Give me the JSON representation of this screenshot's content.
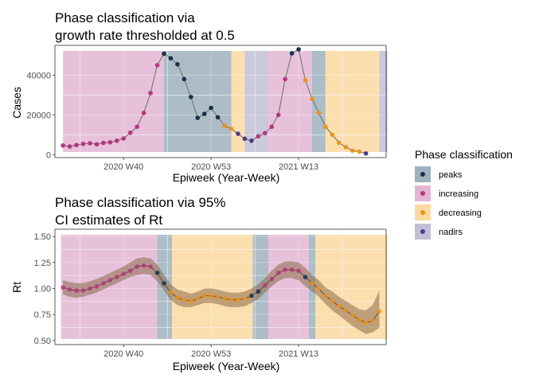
{
  "chart_data": [
    {
      "type": "line",
      "title": [
        "Phase classification via",
        "growth rate thresholded at 0.5"
      ],
      "xlabel": "Epiweek (Year-Week)",
      "ylabel": "Cases",
      "x_ticks": [
        {
          "index": 9,
          "label": "2020 W40"
        },
        {
          "index": 22,
          "label": "2020 W53"
        },
        {
          "index": 35,
          "label": "2021 W13"
        }
      ],
      "y_ticks": [
        0,
        20000,
        40000
      ],
      "y_tick_labels": [
        "0",
        "20000",
        "40000"
      ],
      "ylim": [
        -1500,
        55000
      ],
      "xlim": [
        -1.2,
        48
      ],
      "phase_bands": [
        {
          "phase": "increasing",
          "start": 0,
          "end": 15
        },
        {
          "phase": "peaks",
          "start": 15,
          "end": 25
        },
        {
          "phase": "decreasing",
          "start": 25,
          "end": 27
        },
        {
          "phase": "nadirs",
          "start": 27,
          "end": 30.5
        },
        {
          "phase": "increasing",
          "start": 30.5,
          "end": 37
        },
        {
          "phase": "peaks",
          "start": 37,
          "end": 39
        },
        {
          "phase": "decreasing",
          "start": 39,
          "end": 47
        },
        {
          "phase": "nadirs",
          "start": 47,
          "end": 48.2
        }
      ],
      "points": {
        "x": [
          0,
          1,
          2,
          3,
          4,
          5,
          6,
          7,
          8,
          9,
          10,
          11,
          12,
          13,
          14,
          15,
          16,
          17,
          18,
          19,
          20,
          21,
          22,
          23,
          24,
          25,
          26,
          27,
          28,
          29,
          30,
          31,
          32,
          33,
          34,
          35,
          36,
          37,
          38,
          39,
          40,
          41,
          42,
          43,
          44,
          45,
          46,
          47
        ],
        "y": [
          4600,
          4100,
          4800,
          5400,
          5700,
          5200,
          5900,
          6200,
          7000,
          8100,
          11000,
          14000,
          21000,
          31000,
          45000,
          50800,
          48500,
          45500,
          38000,
          29000,
          18500,
          20500,
          23500,
          18800,
          14500,
          13000,
          10500,
          8000,
          7000,
          9200,
          10800,
          14000,
          20000,
          38000,
          51000,
          53000,
          37500,
          28000,
          21000,
          14000,
          10000,
          6000,
          3800,
          2000,
          1500,
          600,
          null,
          null
        ],
        "phase": [
          "increasing",
          "increasing",
          "increasing",
          "increasing",
          "increasing",
          "increasing",
          "increasing",
          "increasing",
          "increasing",
          "increasing",
          "increasing",
          "increasing",
          "increasing",
          "increasing",
          "increasing",
          "peaks",
          "peaks",
          "peaks",
          "peaks",
          "peaks",
          "peaks",
          "peaks",
          "peaks",
          "peaks",
          "decreasing",
          "decreasing",
          "nadirs",
          "nadirs",
          "nadirs",
          "increasing",
          "increasing",
          "increasing",
          "increasing",
          "increasing",
          "peaks",
          "peaks",
          "decreasing",
          "decreasing",
          "decreasing",
          "decreasing",
          "decreasing",
          "decreasing",
          "decreasing",
          "decreasing",
          "decreasing",
          "nadirs",
          null,
          null
        ]
      },
      "grid": true
    },
    {
      "type": "line",
      "title": [
        "Phase classification via 95%",
        "CI estimates of Rt"
      ],
      "xlabel": "Epiweek (Year-Week)",
      "ylabel": "Rt",
      "x_ticks": [
        {
          "index": 9,
          "label": "2020 W40"
        },
        {
          "index": 22,
          "label": "2020 W53"
        },
        {
          "index": 35,
          "label": "2021 W13"
        }
      ],
      "y_ticks": [
        0.5,
        0.75,
        1.0,
        1.25,
        1.5
      ],
      "y_tick_labels": [
        "0.50",
        "0.75",
        "1.00",
        "1.25",
        "1.50"
      ],
      "ylim": [
        0.46,
        1.57
      ],
      "xlim": [
        -1.2,
        48
      ],
      "phase_bands": [
        {
          "phase": "increasing",
          "start": -0.3,
          "end": 14
        },
        {
          "phase": "peaks",
          "start": 14,
          "end": 16.2
        },
        {
          "phase": "decreasing",
          "start": 16.2,
          "end": 28.2
        },
        {
          "phase": "peaks",
          "start": 28.2,
          "end": 30.5
        },
        {
          "phase": "increasing",
          "start": 30.5,
          "end": 36.5
        },
        {
          "phase": "peaks",
          "start": 36.5,
          "end": 37.5
        },
        {
          "phase": "decreasing",
          "start": 37.5,
          "end": 48.2
        }
      ],
      "rt": {
        "x": [
          0,
          1,
          2,
          3,
          4,
          5,
          6,
          7,
          8,
          9,
          10,
          11,
          12,
          13,
          14,
          15,
          16,
          17,
          18,
          19,
          20,
          21,
          22,
          23,
          24,
          25,
          26,
          27,
          28,
          29,
          30,
          31,
          32,
          33,
          34,
          35,
          36,
          37,
          38,
          39,
          40,
          41,
          42,
          43,
          44,
          45,
          46,
          47
        ],
        "y": [
          1.01,
          0.99,
          0.98,
          0.98,
          1.0,
          1.02,
          1.05,
          1.08,
          1.11,
          1.14,
          1.17,
          1.21,
          1.22,
          1.21,
          1.15,
          1.05,
          0.96,
          0.91,
          0.89,
          0.88,
          0.9,
          0.93,
          0.93,
          0.92,
          0.9,
          0.89,
          0.89,
          0.9,
          0.93,
          0.97,
          1.03,
          1.09,
          1.15,
          1.18,
          1.18,
          1.17,
          1.11,
          1.05,
          1.0,
          0.93,
          0.88,
          0.83,
          0.79,
          0.74,
          0.7,
          0.67,
          0.69,
          0.78
        ],
        "lower": [
          0.94,
          0.92,
          0.91,
          0.92,
          0.94,
          0.96,
          0.99,
          1.02,
          1.05,
          1.08,
          1.11,
          1.13,
          1.14,
          1.13,
          1.07,
          0.98,
          0.89,
          0.84,
          0.82,
          0.82,
          0.84,
          0.86,
          0.86,
          0.85,
          0.83,
          0.82,
          0.82,
          0.83,
          0.86,
          0.9,
          0.96,
          1.02,
          1.07,
          1.1,
          1.1,
          1.08,
          1.02,
          0.97,
          0.92,
          0.85,
          0.79,
          0.74,
          0.69,
          0.64,
          0.6,
          0.56,
          0.58,
          0.62
        ],
        "upper": [
          1.08,
          1.06,
          1.05,
          1.05,
          1.07,
          1.09,
          1.12,
          1.15,
          1.18,
          1.21,
          1.25,
          1.29,
          1.3,
          1.29,
          1.23,
          1.13,
          1.04,
          0.99,
          0.97,
          0.95,
          0.97,
          1.0,
          1.0,
          0.99,
          0.97,
          0.96,
          0.96,
          0.97,
          1.0,
          1.04,
          1.1,
          1.17,
          1.23,
          1.26,
          1.26,
          1.25,
          1.2,
          1.13,
          1.08,
          1.01,
          0.97,
          0.92,
          0.88,
          0.84,
          0.8,
          0.79,
          0.84,
          0.98
        ],
        "phase": [
          "increasing",
          "increasing",
          "increasing",
          "increasing",
          "increasing",
          "increasing",
          "increasing",
          "increasing",
          "increasing",
          "increasing",
          "increasing",
          "increasing",
          "increasing",
          "increasing",
          "peaks",
          "peaks",
          "decreasing",
          "decreasing",
          "decreasing",
          "decreasing",
          "decreasing",
          "decreasing",
          "decreasing",
          "decreasing",
          "decreasing",
          "decreasing",
          "decreasing",
          "decreasing",
          "peaks",
          "peaks",
          "increasing",
          "increasing",
          "increasing",
          "increasing",
          "increasing",
          "increasing",
          "peaks",
          "decreasing",
          "decreasing",
          "decreasing",
          "decreasing",
          "decreasing",
          "decreasing",
          "decreasing",
          "decreasing",
          "decreasing",
          "decreasing",
          "decreasing"
        ]
      },
      "grid": true
    }
  ],
  "legend": {
    "title": "Phase classification",
    "placement": "right",
    "items": [
      {
        "key": "peaks",
        "label": "peaks",
        "fill": "#9fb2bd",
        "point": "#17324a"
      },
      {
        "key": "increasing",
        "label": "increasing",
        "fill": "#e3b6d3",
        "point": "#b5367f"
      },
      {
        "key": "decreasing",
        "label": "decreasing",
        "fill": "#fcd9a0",
        "point": "#ee9313"
      },
      {
        "key": "nadirs",
        "label": "nadirs",
        "fill": "#c2c0d6",
        "point": "#4a3f82"
      }
    ]
  },
  "colors": {
    "line": "#7a7a7a",
    "ci_band": "#8b6a4a",
    "panel_border": "#333333",
    "grid_major": "#ebebeb",
    "grid_minor": "#f5f5f5"
  }
}
